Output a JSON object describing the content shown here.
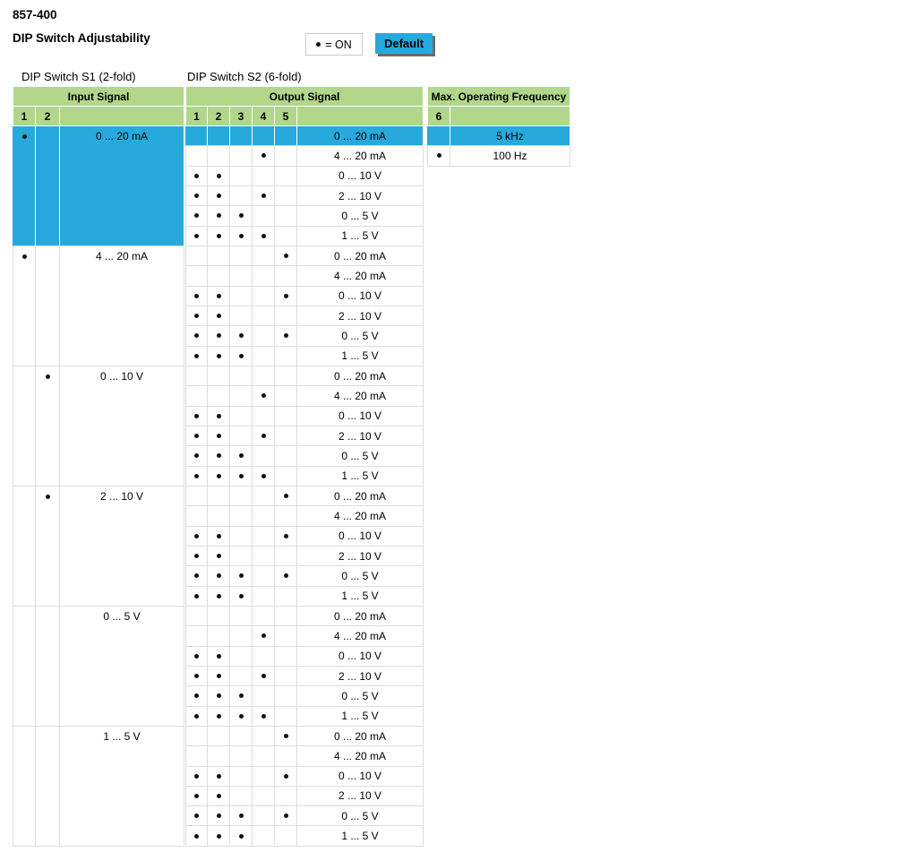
{
  "header": {
    "product_code": "857-400",
    "page_title": "DIP Switch Adjustability",
    "legend_on": "= ON",
    "legend_default": "Default"
  },
  "colors": {
    "header_green": "#b2d78b",
    "accent_blue": "#27a9dc"
  },
  "s1_table": {
    "title": "DIP Switch S1 (2-fold)",
    "header": "Input Signal",
    "columns": [
      "1",
      "2"
    ]
  },
  "s2_table": {
    "title": "DIP Switch S2 (6-fold)",
    "header": "Output Signal",
    "columns": [
      "1",
      "2",
      "3",
      "4",
      "5"
    ]
  },
  "freq_table": {
    "header": "Max. Operating Frequency",
    "columns": [
      "6"
    ],
    "rows": [
      {
        "label": "5 kHz",
        "on": [],
        "default": true
      },
      {
        "label": "100 Hz",
        "on": [
          6
        ],
        "default": false
      }
    ]
  },
  "groups": [
    {
      "input_label": "0 ... 20 mA",
      "s1_on": [
        1
      ],
      "default": true,
      "outputs": [
        {
          "label": "0 ... 20 mA",
          "s2_on": [],
          "default": true
        },
        {
          "label": "4 ... 20 mA",
          "s2_on": [
            4
          ]
        },
        {
          "label": "0 ... 10 V",
          "s2_on": [
            1,
            2
          ]
        },
        {
          "label": "2 ... 10 V",
          "s2_on": [
            1,
            2,
            4
          ]
        },
        {
          "label": "0 ... 5 V",
          "s2_on": [
            1,
            2,
            3
          ]
        },
        {
          "label": "1 ... 5 V",
          "s2_on": [
            1,
            2,
            3,
            4
          ]
        }
      ]
    },
    {
      "input_label": "4 ... 20 mA",
      "s1_on": [
        1
      ],
      "default": false,
      "outputs": [
        {
          "label": "0 ... 20 mA",
          "s2_on": [
            5
          ]
        },
        {
          "label": "4 ... 20 mA",
          "s2_on": []
        },
        {
          "label": "0 ... 10 V",
          "s2_on": [
            1,
            2,
            5
          ]
        },
        {
          "label": "2 ... 10 V",
          "s2_on": [
            1,
            2
          ]
        },
        {
          "label": "0 ... 5 V",
          "s2_on": [
            1,
            2,
            3,
            5
          ]
        },
        {
          "label": "1 ... 5 V",
          "s2_on": [
            1,
            2,
            3
          ]
        }
      ]
    },
    {
      "input_label": "0 ... 10 V",
      "s1_on": [
        2
      ],
      "default": false,
      "outputs": [
        {
          "label": "0 ... 20 mA",
          "s2_on": []
        },
        {
          "label": "4 ... 20 mA",
          "s2_on": [
            4
          ]
        },
        {
          "label": "0 ... 10 V",
          "s2_on": [
            1,
            2
          ]
        },
        {
          "label": "2 ... 10 V",
          "s2_on": [
            1,
            2,
            4
          ]
        },
        {
          "label": "0 ... 5 V",
          "s2_on": [
            1,
            2,
            3
          ]
        },
        {
          "label": "1 ... 5 V",
          "s2_on": [
            1,
            2,
            3,
            4
          ]
        }
      ]
    },
    {
      "input_label": "2 ... 10 V",
      "s1_on": [
        2
      ],
      "default": false,
      "outputs": [
        {
          "label": "0 ... 20 mA",
          "s2_on": [
            5
          ]
        },
        {
          "label": "4 ... 20 mA",
          "s2_on": []
        },
        {
          "label": "0 ... 10 V",
          "s2_on": [
            1,
            2,
            5
          ]
        },
        {
          "label": "2 ... 10 V",
          "s2_on": [
            1,
            2
          ]
        },
        {
          "label": "0 ... 5 V",
          "s2_on": [
            1,
            2,
            3,
            5
          ]
        },
        {
          "label": "1 ... 5 V",
          "s2_on": [
            1,
            2,
            3
          ]
        }
      ]
    },
    {
      "input_label": "0 ... 5 V",
      "s1_on": [],
      "default": false,
      "outputs": [
        {
          "label": "0 ... 20 mA",
          "s2_on": []
        },
        {
          "label": "4 ... 20 mA",
          "s2_on": [
            4
          ]
        },
        {
          "label": "0 ... 10 V",
          "s2_on": [
            1,
            2
          ]
        },
        {
          "label": "2 ... 10 V",
          "s2_on": [
            1,
            2,
            4
          ]
        },
        {
          "label": "0 ... 5 V",
          "s2_on": [
            1,
            2,
            3
          ]
        },
        {
          "label": "1 ... 5 V",
          "s2_on": [
            1,
            2,
            3,
            4
          ]
        }
      ]
    },
    {
      "input_label": "1 ... 5 V",
      "s1_on": [],
      "default": false,
      "outputs": [
        {
          "label": "0 ... 20 mA",
          "s2_on": [
            5
          ]
        },
        {
          "label": "4 ... 20 mA",
          "s2_on": []
        },
        {
          "label": "0 ... 10 V",
          "s2_on": [
            1,
            2,
            5
          ]
        },
        {
          "label": "2 ... 10 V",
          "s2_on": [
            1,
            2
          ]
        },
        {
          "label": "0 ... 5 V",
          "s2_on": [
            1,
            2,
            3,
            5
          ]
        },
        {
          "label": "1 ... 5 V",
          "s2_on": [
            1,
            2,
            3
          ]
        }
      ]
    }
  ]
}
